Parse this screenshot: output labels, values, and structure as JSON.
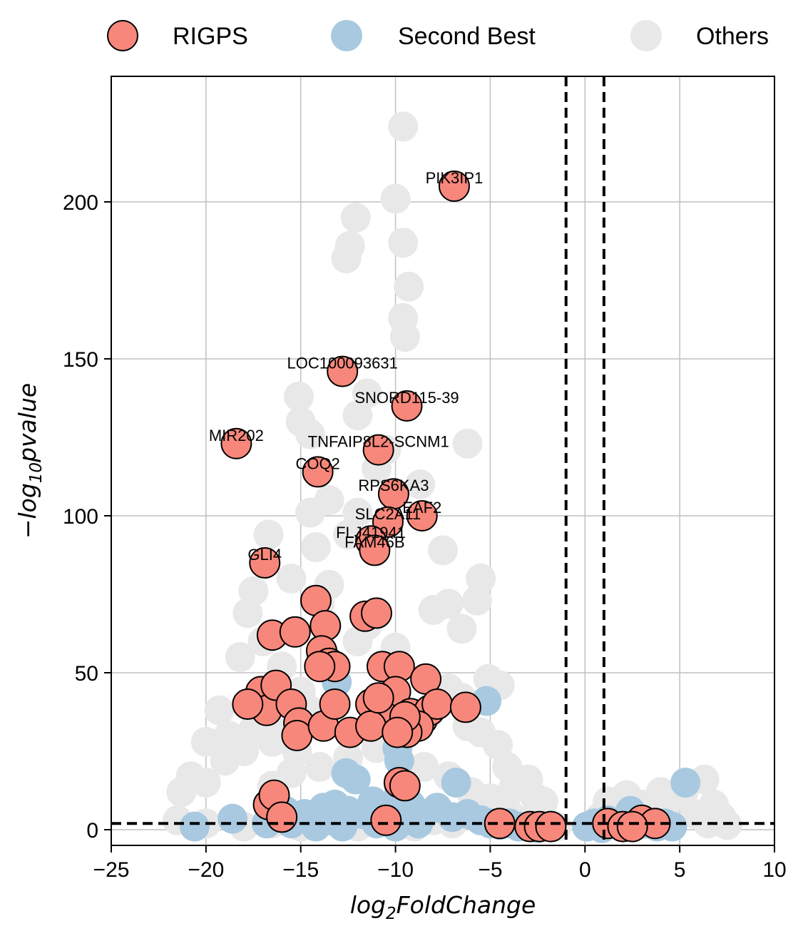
{
  "chart_data": {
    "type": "scatter",
    "xlabel": "log2FoldChange",
    "ylabel": "-log10pvalue",
    "xlim": [
      -25,
      10
    ],
    "ylim": [
      -5,
      240
    ],
    "x_ticks": [
      -25,
      -20,
      -15,
      -10,
      -5,
      0,
      5,
      10
    ],
    "x_tick_labels": [
      "−25",
      "−20",
      "−15",
      "−10",
      "−5",
      "0",
      "5",
      "10"
    ],
    "y_ticks": [
      0,
      50,
      100,
      150,
      200
    ],
    "y_tick_labels": [
      "0",
      "50",
      "100",
      "150",
      "200"
    ],
    "grid": true,
    "legend_position": "top",
    "thresholds": {
      "vertical": [
        -1,
        1
      ],
      "horizontal": [
        2
      ]
    },
    "colors": {
      "RIGPS": "#f8877b",
      "Second Best": "#a8c9e0",
      "Others": "#e8e8e8",
      "threshold": "#000000"
    },
    "series": [
      {
        "name": "Others",
        "points": [
          [
            -9.6,
            224
          ],
          [
            -10,
            201
          ],
          [
            -9.6,
            187
          ],
          [
            -12.1,
            195
          ],
          [
            -12.4,
            186
          ],
          [
            -12.6,
            182
          ],
          [
            -9.3,
            173
          ],
          [
            -9.6,
            163
          ],
          [
            -9.5,
            157
          ],
          [
            -6.2,
            123
          ],
          [
            -15.1,
            138
          ],
          [
            -15,
            130
          ],
          [
            -14.5,
            126
          ],
          [
            -12,
            132
          ],
          [
            -11.5,
            139
          ],
          [
            -11,
            115
          ],
          [
            -10.5,
            121
          ],
          [
            -8.7,
            110
          ],
          [
            -14.5,
            101
          ],
          [
            -13.5,
            105
          ],
          [
            -14.2,
            90
          ],
          [
            -12.5,
            94
          ],
          [
            -12,
            101
          ],
          [
            -16.7,
            94
          ],
          [
            -7.5,
            89
          ],
          [
            -15.5,
            80
          ],
          [
            -14,
            72
          ],
          [
            -13.5,
            78
          ],
          [
            -12,
            60
          ],
          [
            -11.5,
            65
          ],
          [
            -10,
            58
          ],
          [
            -8,
            70
          ],
          [
            -7.2,
            72
          ],
          [
            -6.5,
            64
          ],
          [
            -5.5,
            80
          ],
          [
            -5.7,
            73
          ],
          [
            -17.5,
            76
          ],
          [
            -17.8,
            69
          ],
          [
            -18.2,
            55
          ],
          [
            -17,
            60
          ],
          [
            -16,
            52
          ],
          [
            -15,
            44
          ],
          [
            -14.5,
            38
          ],
          [
            -13.7,
            35
          ],
          [
            -19.3,
            38
          ],
          [
            -18.8,
            30
          ],
          [
            -20,
            28
          ],
          [
            -17.5,
            32
          ],
          [
            -16.5,
            28
          ],
          [
            -16,
            35
          ],
          [
            -15.2,
            25
          ],
          [
            -9.5,
            34
          ],
          [
            -8.2,
            37
          ],
          [
            -7.2,
            45
          ],
          [
            -6.5,
            42
          ],
          [
            -5.1,
            48
          ],
          [
            -4.5,
            46
          ],
          [
            -6.2,
            33
          ],
          [
            -5.5,
            31
          ],
          [
            -4.6,
            27
          ],
          [
            -4.1,
            20
          ],
          [
            -3.8,
            13
          ],
          [
            -3,
            16
          ],
          [
            -2.6,
            10
          ],
          [
            -2.2,
            9
          ],
          [
            -20.8,
            17
          ],
          [
            -21.3,
            12
          ],
          [
            -20,
            15
          ],
          [
            -19,
            22
          ],
          [
            -18,
            25
          ],
          [
            -16.5,
            14
          ],
          [
            -15.5,
            18
          ],
          [
            -14,
            20
          ],
          [
            -12.5,
            23
          ],
          [
            -11,
            26
          ],
          [
            -9.8,
            22
          ],
          [
            -8.5,
            20
          ],
          [
            -7.2,
            17
          ],
          [
            -6,
            12
          ],
          [
            -5,
            10
          ],
          [
            -4,
            5
          ],
          [
            -3,
            3
          ],
          [
            -2,
            2
          ],
          [
            -1.5,
            1
          ],
          [
            -21.5,
            3
          ],
          [
            -20,
            2
          ],
          [
            -18,
            1
          ],
          [
            -16.5,
            2
          ],
          [
            -15,
            1
          ],
          [
            -13,
            2
          ],
          [
            -12,
            1
          ],
          [
            -10,
            2
          ],
          [
            -9,
            1
          ],
          [
            -8,
            3
          ],
          [
            -7,
            2
          ],
          [
            0.1,
            1
          ],
          [
            0.6,
            2
          ],
          [
            1.5,
            3
          ],
          [
            2,
            2
          ],
          [
            2.8,
            1.5
          ],
          [
            3.6,
            4
          ],
          [
            4.2,
            6
          ],
          [
            4.5,
            10
          ],
          [
            5.2,
            12
          ],
          [
            6.3,
            16
          ],
          [
            6.8,
            8
          ],
          [
            7.2,
            4
          ],
          [
            7.5,
            1.5
          ],
          [
            1.2,
            9
          ],
          [
            2.2,
            11
          ],
          [
            3,
            8
          ],
          [
            4,
            12
          ],
          [
            5.8,
            5
          ],
          [
            6.5,
            2
          ],
          [
            1.8,
            1
          ],
          [
            0.8,
            4
          ]
        ]
      },
      {
        "name": "Second Best",
        "points": [
          [
            -13.1,
            47
          ],
          [
            -5.2,
            41
          ],
          [
            -6.8,
            15
          ],
          [
            -9.8,
            22
          ],
          [
            -9.9,
            26
          ],
          [
            -12.6,
            18
          ],
          [
            -12.1,
            16
          ],
          [
            -20.6,
            1
          ],
          [
            -18.6,
            3.5
          ],
          [
            -16.8,
            2
          ],
          [
            -15.8,
            6
          ],
          [
            -14.8,
            5
          ],
          [
            -13.8,
            7
          ],
          [
            -13.2,
            8
          ],
          [
            -12.5,
            6
          ],
          [
            -11.8,
            5
          ],
          [
            -11.2,
            9
          ],
          [
            -10.5,
            6
          ],
          [
            -9.8,
            12
          ],
          [
            -9.2,
            8
          ],
          [
            -8.5,
            5
          ],
          [
            -7.8,
            7
          ],
          [
            -7,
            4
          ],
          [
            -6.2,
            5
          ],
          [
            -5.5,
            3
          ],
          [
            -5,
            2
          ],
          [
            -4.5,
            1.5
          ],
          [
            -4,
            2
          ],
          [
            -3.5,
            1
          ],
          [
            -3,
            1
          ],
          [
            -2.5,
            0.5
          ],
          [
            -15.5,
            2
          ],
          [
            -14.2,
            1
          ],
          [
            -13.5,
            3
          ],
          [
            -12.8,
            1
          ],
          [
            -11,
            2
          ],
          [
            -10,
            1
          ],
          [
            -8.8,
            2
          ],
          [
            0.1,
            1
          ],
          [
            0.5,
            2
          ],
          [
            1.2,
            3
          ],
          [
            1.8,
            2
          ],
          [
            2.4,
            6
          ],
          [
            2.8,
            3
          ],
          [
            3.2,
            2
          ],
          [
            3.8,
            1
          ],
          [
            4.2,
            2
          ],
          [
            4.6,
            1
          ],
          [
            5.3,
            15
          ],
          [
            0.9,
            0.5
          ]
        ]
      },
      {
        "name": "RIGPS",
        "points": [
          [
            -6.9,
            205
          ],
          [
            -12.8,
            146
          ],
          [
            -9.4,
            135
          ],
          [
            -18.4,
            123
          ],
          [
            -10.9,
            121
          ],
          [
            -14.1,
            114
          ],
          [
            -10.1,
            107
          ],
          [
            -8.6,
            100
          ],
          [
            -10.4,
            98
          ],
          [
            -11.3,
            92
          ],
          [
            -11.1,
            89
          ],
          [
            -16.9,
            85
          ],
          [
            -14.2,
            73
          ],
          [
            -13.7,
            65
          ],
          [
            -11.6,
            68
          ],
          [
            -11,
            69
          ],
          [
            -16.5,
            62
          ],
          [
            -15.3,
            63
          ],
          [
            -13.9,
            57
          ],
          [
            -13.5,
            53
          ],
          [
            -13.2,
            52
          ],
          [
            -14,
            52
          ],
          [
            -10.7,
            52
          ],
          [
            -9.8,
            52
          ],
          [
            -8.4,
            48
          ],
          [
            -10,
            44
          ],
          [
            -11.3,
            40
          ],
          [
            -10.6,
            36
          ],
          [
            -9.2,
            37
          ],
          [
            -8.6,
            35
          ],
          [
            -8.2,
            38
          ],
          [
            -7.8,
            40
          ],
          [
            -6.3,
            39
          ],
          [
            -8.8,
            33
          ],
          [
            -9.4,
            31
          ],
          [
            -17.1,
            44
          ],
          [
            -16.8,
            38
          ],
          [
            -17.8,
            40
          ],
          [
            -16.3,
            46
          ],
          [
            -15.5,
            40
          ],
          [
            -15.1,
            34
          ],
          [
            -15.2,
            30
          ],
          [
            -13.8,
            33
          ],
          [
            -13.2,
            40
          ],
          [
            -12.4,
            31
          ],
          [
            -11.3,
            33
          ],
          [
            -10.9,
            42
          ],
          [
            -9.5,
            36
          ],
          [
            -9.9,
            31
          ],
          [
            -16.7,
            8
          ],
          [
            -16.4,
            11
          ],
          [
            -16,
            4
          ],
          [
            -9.8,
            15
          ],
          [
            -9.5,
            14
          ],
          [
            -10.5,
            3
          ],
          [
            -4.5,
            2
          ],
          [
            -2.9,
            1
          ],
          [
            -2.4,
            1
          ],
          [
            -1.8,
            1
          ],
          [
            1.2,
            2
          ],
          [
            2,
            1
          ],
          [
            3,
            3
          ],
          [
            3.7,
            2
          ],
          [
            2.5,
            1
          ]
        ]
      }
    ],
    "annotations": [
      {
        "text": "PIK3IP1",
        "x": -6.9,
        "y": 205
      },
      {
        "text": "LOC100093631",
        "x": -12.8,
        "y": 146
      },
      {
        "text": "SNORD115-39",
        "x": -9.4,
        "y": 135
      },
      {
        "text": "MIR202",
        "x": -18.4,
        "y": 123
      },
      {
        "text": "TNFAIP8L2-SCNM1",
        "x": -10.9,
        "y": 121
      },
      {
        "text": "COQ2",
        "x": -14.1,
        "y": 114
      },
      {
        "text": "RPS6KA3",
        "x": -10.1,
        "y": 107
      },
      {
        "text": "EAF2",
        "x": -8.6,
        "y": 100
      },
      {
        "text": "SLC2A11",
        "x": -10.4,
        "y": 98
      },
      {
        "text": "FLJ41941",
        "x": -11.3,
        "y": 92
      },
      {
        "text": "FAM46B",
        "x": -11.1,
        "y": 89
      },
      {
        "text": "GLI4",
        "x": -16.9,
        "y": 85
      }
    ]
  }
}
